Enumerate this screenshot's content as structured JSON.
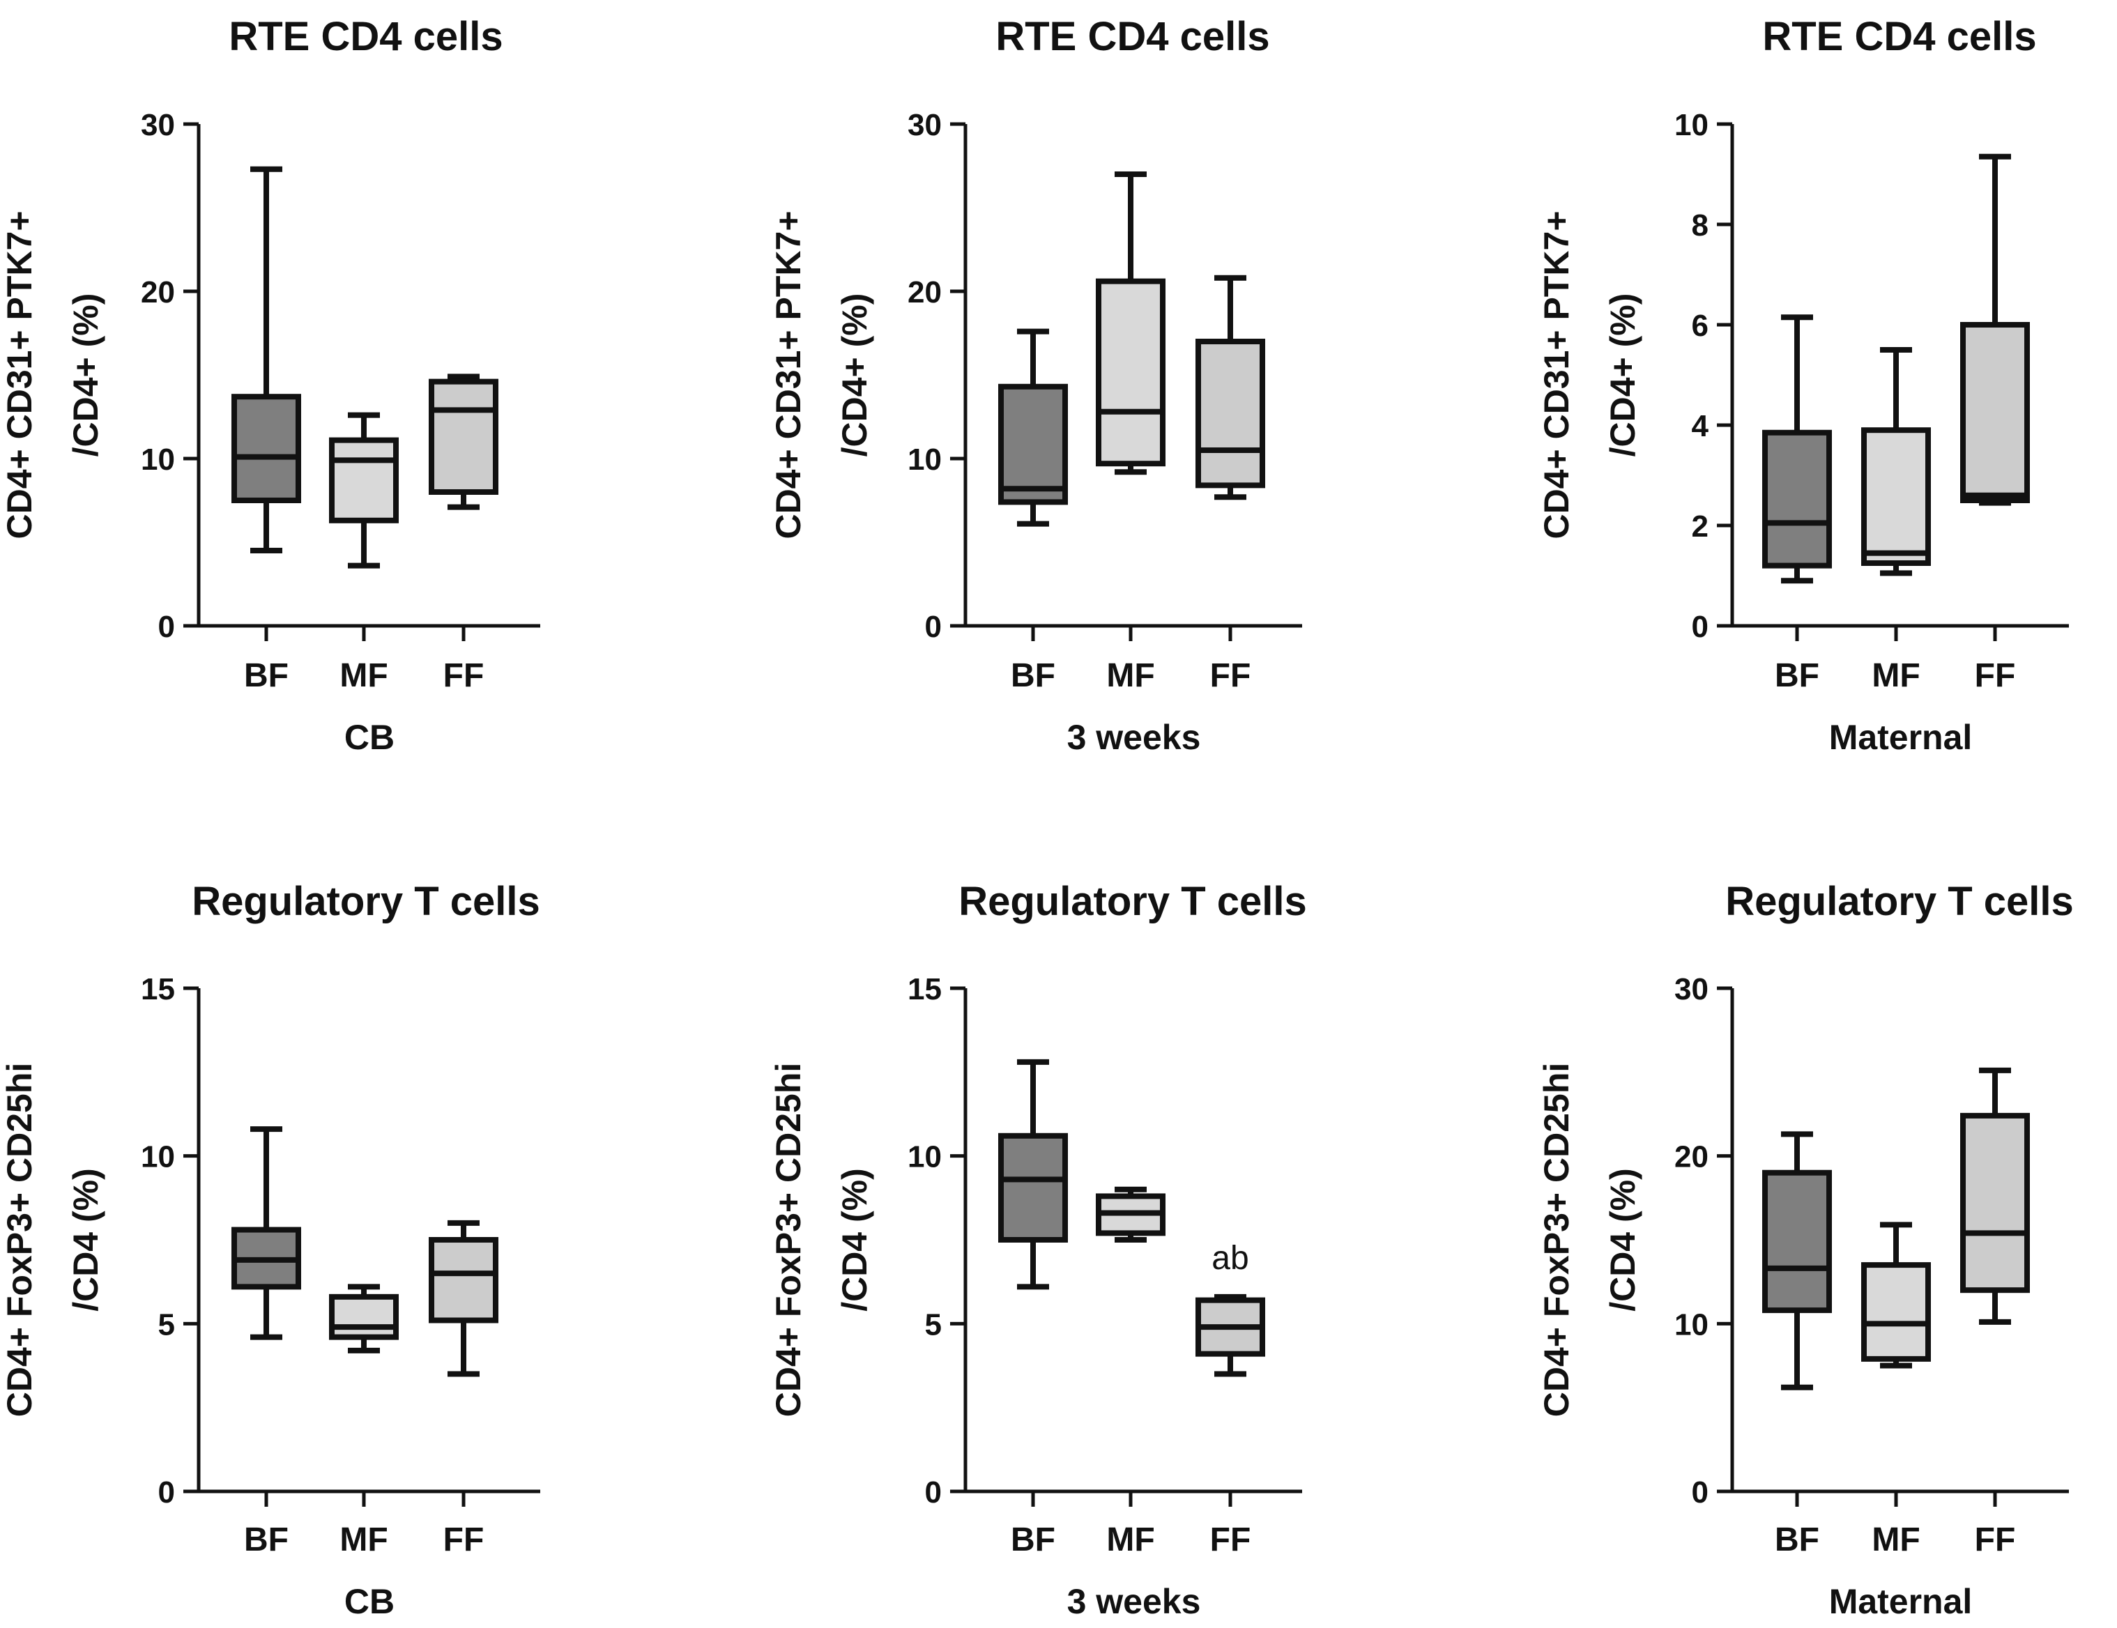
{
  "colors": {
    "BF": "#7f7f7f",
    "MF": "#d9d9d9",
    "FF": "#cccccc",
    "stroke": "#111111"
  },
  "chart_data": [
    {
      "type": "box",
      "title": "RTE CD4 cells",
      "ylabel_lines": [
        "CD4+ CD31+ PTK7+",
        "/CD4+ (%)"
      ],
      "xlabel": "CB",
      "categories": [
        "BF",
        "MF",
        "FF"
      ],
      "ylim": [
        0,
        30
      ],
      "yticks": [
        0,
        10,
        20,
        30
      ],
      "boxes": [
        {
          "category": "BF",
          "min": 4.5,
          "q1": 7.5,
          "median": 10.1,
          "q3": 13.7,
          "max": 27.3
        },
        {
          "category": "MF",
          "min": 3.6,
          "q1": 6.3,
          "median": 9.9,
          "q3": 11.1,
          "max": 12.6
        },
        {
          "category": "FF",
          "min": 7.1,
          "q1": 8.0,
          "median": 12.9,
          "q3": 14.6,
          "max": 14.9
        }
      ],
      "annotations": []
    },
    {
      "type": "box",
      "title": "RTE CD4 cells",
      "ylabel_lines": [
        "CD4+ CD31+ PTK7+",
        "/CD4+ (%)"
      ],
      "xlabel": "3 weeks",
      "categories": [
        "BF",
        "MF",
        "FF"
      ],
      "ylim": [
        0,
        30
      ],
      "yticks": [
        0,
        10,
        20,
        30
      ],
      "boxes": [
        {
          "category": "BF",
          "min": 6.1,
          "q1": 7.4,
          "median": 8.2,
          "q3": 14.3,
          "max": 17.6
        },
        {
          "category": "MF",
          "min": 9.2,
          "q1": 9.7,
          "median": 12.8,
          "q3": 20.6,
          "max": 27.0
        },
        {
          "category": "FF",
          "min": 7.7,
          "q1": 8.4,
          "median": 10.5,
          "q3": 17.0,
          "max": 20.8
        }
      ],
      "annotations": []
    },
    {
      "type": "box",
      "title": "RTE CD4 cells",
      "ylabel_lines": [
        "CD4+ CD31+ PTK7+",
        "/CD4+ (%)"
      ],
      "xlabel": "Maternal",
      "categories": [
        "BF",
        "MF",
        "FF"
      ],
      "ylim": [
        0,
        10
      ],
      "yticks": [
        0,
        2,
        4,
        6,
        8,
        10
      ],
      "boxes": [
        {
          "category": "BF",
          "min": 0.9,
          "q1": 1.2,
          "median": 2.05,
          "q3": 3.85,
          "max": 6.15
        },
        {
          "category": "MF",
          "min": 1.05,
          "q1": 1.25,
          "median": 1.45,
          "q3": 3.9,
          "max": 5.5
        },
        {
          "category": "FF",
          "min": 2.45,
          "q1": 2.5,
          "median": 2.6,
          "q3": 6.0,
          "max": 9.35
        }
      ],
      "annotations": []
    },
    {
      "type": "box",
      "title": "Regulatory T cells",
      "ylabel_lines": [
        "CD4+ FoxP3+ CD25hi",
        "/CD4 (%)"
      ],
      "xlabel": "CB",
      "categories": [
        "BF",
        "MF",
        "FF"
      ],
      "ylim": [
        0,
        15
      ],
      "yticks": [
        0,
        5,
        10,
        15
      ],
      "boxes": [
        {
          "category": "BF",
          "min": 4.6,
          "q1": 6.1,
          "median": 6.9,
          "q3": 7.8,
          "max": 10.8
        },
        {
          "category": "MF",
          "min": 4.2,
          "q1": 4.6,
          "median": 4.9,
          "q3": 5.8,
          "max": 6.1
        },
        {
          "category": "FF",
          "min": 3.5,
          "q1": 5.1,
          "median": 6.5,
          "q3": 7.5,
          "max": 8.0
        }
      ],
      "annotations": []
    },
    {
      "type": "box",
      "title": "Regulatory T cells",
      "ylabel_lines": [
        "CD4+ FoxP3+ CD25hi",
        "/CD4 (%)"
      ],
      "xlabel": "3 weeks",
      "categories": [
        "BF",
        "MF",
        "FF"
      ],
      "ylim": [
        0,
        15
      ],
      "yticks": [
        0,
        5,
        10,
        15
      ],
      "boxes": [
        {
          "category": "BF",
          "min": 6.1,
          "q1": 7.5,
          "median": 9.3,
          "q3": 10.6,
          "max": 12.8
        },
        {
          "category": "MF",
          "min": 7.5,
          "q1": 7.7,
          "median": 8.3,
          "q3": 8.8,
          "max": 9.0
        },
        {
          "category": "FF",
          "min": 3.5,
          "q1": 4.1,
          "median": 4.9,
          "q3": 5.7,
          "max": 5.8
        }
      ],
      "annotations": [
        {
          "category": "FF",
          "text": "ab"
        }
      ]
    },
    {
      "type": "box",
      "title": "Regulatory T cells",
      "ylabel_lines": [
        "CD4+ FoxP3+ CD25hi",
        "/CD4 (%)"
      ],
      "xlabel": "Maternal",
      "categories": [
        "BF",
        "MF",
        "FF"
      ],
      "ylim": [
        0,
        30
      ],
      "yticks": [
        0,
        10,
        20,
        30
      ],
      "boxes": [
        {
          "category": "BF",
          "min": 6.2,
          "q1": 10.8,
          "median": 13.3,
          "q3": 19.0,
          "max": 21.3
        },
        {
          "category": "MF",
          "min": 7.5,
          "q1": 7.9,
          "median": 10.0,
          "q3": 13.5,
          "max": 15.9
        },
        {
          "category": "FF",
          "min": 10.1,
          "q1": 12.0,
          "median": 15.4,
          "q3": 22.4,
          "max": 25.1
        }
      ],
      "annotations": []
    }
  ]
}
